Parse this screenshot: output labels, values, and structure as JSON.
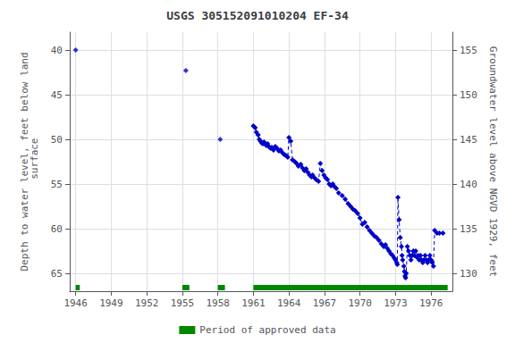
{
  "chart_data": {
    "type": "line",
    "title": "USGS 305152091010204 EF-34",
    "ylabel": "Depth to water level, feet below land\n surface",
    "y2label": "Groundwater level above NGVD 1929, feet",
    "xlim": [
      1945.5,
      1977.8
    ],
    "xticks": [
      1946,
      1949,
      1952,
      1955,
      1958,
      1961,
      1964,
      1967,
      1970,
      1973,
      1976
    ],
    "ylim": [
      67.0,
      38.0
    ],
    "yticks": [
      40,
      45,
      50,
      55,
      60,
      65
    ],
    "y2lim": [
      128.0,
      157.0
    ],
    "y2ticks": [
      130,
      135,
      140,
      145,
      150,
      155
    ],
    "grid": true,
    "legend": "bottom",
    "series": [
      {
        "type": "scatter",
        "marker": "diamond",
        "color": "#0000cc",
        "x": [
          1946.0,
          1955.3,
          1958.2
        ],
        "values": [
          40.0,
          42.3,
          50.0
        ]
      },
      {
        "type": "line",
        "marker": "diamond",
        "line_style": "dashed",
        "color": "#0000cc",
        "x": [
          1961.0,
          1961.15,
          1961.25,
          1961.4,
          1961.5,
          1961.6,
          1961.7,
          1961.8,
          1961.9,
          1962.0,
          1962.1,
          1962.2,
          1962.3,
          1962.45,
          1962.55,
          1962.7,
          1962.85,
          1963.0,
          1963.15,
          1963.3,
          1963.45,
          1963.6,
          1963.75,
          1963.9,
          1964.0,
          1964.15,
          1964.3,
          1964.5,
          1964.65,
          1964.8,
          1965.0,
          1965.15,
          1965.3,
          1965.45,
          1965.6,
          1965.75,
          1965.9,
          1966.0,
          1966.15,
          1966.3,
          1966.5,
          1966.65,
          1966.8,
          1966.95,
          1967.1,
          1967.25,
          1967.4,
          1967.55,
          1967.7,
          1967.85,
          1968.0,
          1968.2,
          1968.5,
          1968.75,
          1969.0,
          1969.2,
          1969.4,
          1969.6,
          1969.8,
          1970.0,
          1970.2,
          1970.4,
          1970.6,
          1970.8,
          1971.0,
          1971.2,
          1971.4,
          1971.6,
          1971.8,
          1972.0,
          1972.15,
          1972.3,
          1972.45,
          1972.6,
          1972.75,
          1972.9,
          1973.0,
          1973.1,
          1973.15,
          1973.2,
          1973.3,
          1973.4,
          1973.5,
          1973.55,
          1973.6,
          1973.7,
          1973.75,
          1973.8,
          1973.85,
          1973.9,
          1974.0,
          1974.1,
          1974.2,
          1974.3,
          1974.4,
          1974.5,
          1974.6,
          1974.7,
          1974.8,
          1974.9,
          1975.0,
          1975.1,
          1975.2,
          1975.3,
          1975.4,
          1975.5,
          1975.6,
          1975.7,
          1975.8,
          1975.9,
          1976.0,
          1976.1,
          1976.2,
          1976.3,
          1976.5,
          1976.7,
          1977.0
        ],
        "values": [
          48.5,
          48.7,
          49.2,
          49.5,
          50.0,
          50.2,
          50.4,
          50.5,
          50.3,
          50.5,
          50.7,
          50.5,
          50.8,
          51.0,
          50.9,
          51.2,
          50.8,
          51.0,
          51.3,
          51.2,
          51.5,
          51.7,
          51.8,
          52.0,
          49.8,
          50.2,
          52.3,
          52.5,
          52.7,
          53.0,
          52.8,
          53.2,
          53.5,
          53.3,
          53.7,
          54.0,
          54.2,
          54.0,
          54.3,
          54.5,
          54.7,
          52.7,
          53.5,
          54.0,
          54.3,
          54.5,
          55.0,
          55.2,
          55.0,
          55.3,
          55.5,
          56.0,
          56.3,
          56.7,
          57.2,
          57.5,
          57.8,
          58.0,
          58.3,
          58.8,
          59.5,
          59.3,
          59.8,
          60.2,
          60.5,
          60.8,
          61.0,
          61.3,
          61.7,
          62.0,
          61.8,
          62.2,
          62.5,
          62.8,
          63.0,
          63.3,
          63.5,
          63.8,
          64.0,
          56.5,
          59.0,
          61.0,
          62.0,
          63.0,
          63.5,
          64.2,
          64.8,
          65.3,
          65.5,
          65.0,
          62.0,
          62.5,
          63.0,
          63.5,
          63.0,
          62.5,
          63.0,
          62.5,
          63.2,
          63.0,
          63.5,
          63.0,
          63.5,
          63.8,
          63.5,
          63.0,
          63.5,
          63.8,
          63.5,
          63.0,
          63.5,
          63.8,
          64.2,
          60.2,
          60.5,
          60.5,
          60.5
        ]
      },
      {
        "type": "range",
        "name": "Period of approved data",
        "color": "#008800",
        "ranges": [
          [
            1946.0,
            1946.35
          ],
          [
            1955.0,
            1955.6
          ],
          [
            1958.0,
            1958.6
          ],
          [
            1961.0,
            1977.4
          ]
        ]
      }
    ]
  }
}
